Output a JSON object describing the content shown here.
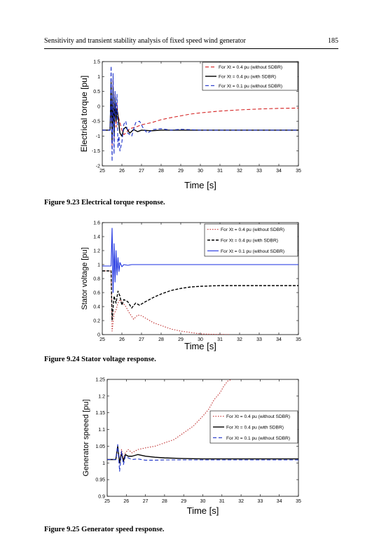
{
  "header": {
    "title": "Sensitivity and transient stability analysis of fixed speed wind generator",
    "page_number": "185"
  },
  "figures": [
    {
      "caption": "Figure 9.23  Electrical torque response."
    },
    {
      "caption": "Figure 9.24  Stator voltage response."
    },
    {
      "caption": "Figure 9.25  Generator speed response."
    }
  ],
  "chart_data": [
    {
      "type": "line",
      "xlabel": "Time [s]",
      "ylabel": "Electrical torque [pu]",
      "xlim": [
        25,
        35
      ],
      "ylim": [
        -2,
        1.5
      ],
      "xticks": [
        "25",
        "26",
        "27",
        "28",
        "29",
        "30",
        "31",
        "32",
        "33",
        "34",
        "35"
      ],
      "yticks": [
        "-2",
        "-1.5",
        "-1",
        "-0.5",
        "0",
        "0.5",
        "1",
        "1.5"
      ],
      "legend_position": "top-right",
      "series": [
        {
          "name": "For Xt = 0.4 pu (without SDBR)",
          "color": "#d42020",
          "dash": "5,3",
          "x": [
            25,
            25.4,
            25.45,
            25.5,
            25.55,
            25.6,
            25.65,
            25.7,
            25.75,
            25.8,
            25.9,
            26.0,
            26.1,
            26.2,
            26.4,
            26.7,
            27,
            27.5,
            28,
            28.5,
            29,
            29.5,
            30,
            31,
            32,
            33,
            34,
            35
          ],
          "y": [
            -0.8,
            -0.8,
            0.6,
            -1.4,
            0.9,
            -1.1,
            0.4,
            -0.7,
            0.1,
            -0.3,
            -0.55,
            -0.8,
            -0.95,
            -0.9,
            -0.75,
            -0.7,
            -0.62,
            -0.55,
            -0.45,
            -0.38,
            -0.32,
            -0.26,
            -0.22,
            -0.16,
            -0.12,
            -0.09,
            -0.07,
            -0.06
          ]
        },
        {
          "name": "For Xt = 0.4 pu (with SDBR)",
          "color": "#000000",
          "dash": "",
          "x": [
            25,
            25.4,
            25.45,
            25.5,
            25.55,
            25.6,
            25.65,
            25.7,
            25.75,
            25.8,
            25.9,
            26.0,
            26.1,
            26.2,
            26.4,
            26.6,
            26.8,
            27.0,
            27.5,
            28,
            29,
            30,
            31,
            32,
            33,
            34,
            35
          ],
          "y": [
            -0.8,
            -0.8,
            0.8,
            -1.2,
            0.6,
            -1.0,
            0.3,
            -0.5,
            -0.1,
            -0.3,
            -0.9,
            -1.0,
            -0.75,
            -0.7,
            -0.9,
            -0.78,
            -0.85,
            -0.8,
            -0.82,
            -0.8,
            -0.8,
            -0.8,
            -0.8,
            -0.8,
            -0.8,
            -0.8,
            -0.8
          ]
        },
        {
          "name": "For Xt = 0.1 pu (without SDBR)",
          "color": "#1a2fc8",
          "dash": "5,3",
          "x": [
            25,
            25.4,
            25.45,
            25.5,
            25.55,
            25.6,
            25.65,
            25.7,
            25.75,
            25.8,
            25.85,
            25.9,
            26.0,
            26.1,
            26.2,
            26.3,
            26.5,
            26.7,
            26.9,
            27.1,
            27.3,
            27.6,
            28,
            28.5,
            29,
            30,
            31,
            32,
            33,
            34,
            35
          ],
          "y": [
            -0.8,
            -0.8,
            1.35,
            -1.85,
            1.1,
            -1.6,
            0.5,
            -0.3,
            0.4,
            -1.4,
            -1.0,
            -1.5,
            -1.2,
            -0.6,
            -0.5,
            -0.9,
            -1.0,
            -0.55,
            -0.5,
            -0.75,
            -0.9,
            -0.78,
            -0.75,
            -0.8,
            -0.77,
            -0.8,
            -0.8,
            -0.8,
            -0.8,
            -0.8,
            -0.8
          ]
        }
      ]
    },
    {
      "type": "line",
      "xlabel": "Time [s]",
      "ylabel": "Stator voltage [pu]",
      "xlim": [
        25,
        35
      ],
      "ylim": [
        0,
        1.6
      ],
      "xticks": [
        "25",
        "26",
        "27",
        "28",
        "29",
        "30",
        "31",
        "32",
        "33",
        "34",
        "35"
      ],
      "yticks": [
        "0",
        "0.2",
        "0.4",
        "0.6",
        "0.8",
        "1",
        "1.2",
        "1.4",
        "1.6"
      ],
      "legend_position": "top-right",
      "series": [
        {
          "name": "For Xt = 0.4 pu (without SDBR)",
          "color": "#c03030",
          "dash": "1.5,2",
          "x": [
            25,
            25.45,
            25.5,
            25.6,
            25.7,
            25.8,
            25.9,
            26.0,
            26.2,
            26.4,
            26.6,
            26.8,
            27.0,
            27.3,
            27.6,
            28,
            28.5,
            29,
            29.5,
            30,
            30.5,
            31.5
          ],
          "y": [
            0.91,
            0.91,
            0.05,
            0.3,
            0.35,
            0.45,
            0.5,
            0.47,
            0.4,
            0.3,
            0.22,
            0.28,
            0.27,
            0.22,
            0.17,
            0.13,
            0.08,
            0.05,
            0.03,
            0.01,
            0.005,
            0.0
          ]
        },
        {
          "name": "For Xt = 0.4 pu (with SDBR)",
          "color": "#000000",
          "dash": "4,2",
          "x": [
            25,
            25.45,
            25.5,
            25.6,
            25.7,
            25.8,
            25.9,
            26.0,
            26.1,
            26.3,
            26.5,
            26.7,
            26.9,
            27.2,
            27.6,
            28,
            28.5,
            29,
            29.5,
            30,
            31,
            32,
            33,
            34,
            35
          ],
          "y": [
            0.91,
            0.91,
            0.2,
            0.55,
            0.45,
            0.62,
            0.55,
            0.42,
            0.5,
            0.47,
            0.38,
            0.45,
            0.42,
            0.47,
            0.53,
            0.58,
            0.63,
            0.66,
            0.68,
            0.69,
            0.7,
            0.7,
            0.7,
            0.7,
            0.7
          ]
        },
        {
          "name": "For Xt = 0.1 pu (without SDBR)",
          "color": "#1a2fe0",
          "dash": "",
          "x": [
            25,
            25.45,
            25.5,
            25.55,
            25.6,
            25.65,
            25.7,
            25.75,
            25.8,
            25.85,
            25.9,
            26.0,
            26.1,
            26.3,
            26.5,
            27,
            28,
            30,
            35
          ],
          "y": [
            0.98,
            0.98,
            1.52,
            0.6,
            1.3,
            0.75,
            1.2,
            0.85,
            1.1,
            0.9,
            1.03,
            0.97,
            1.0,
            0.99,
            1.0,
            1.0,
            1.0,
            1.0,
            1.0
          ]
        }
      ]
    },
    {
      "type": "line",
      "xlabel": "Time [s]",
      "ylabel": "Generator speeed [pu]",
      "xlim": [
        25,
        35
      ],
      "ylim": [
        0.9,
        1.25
      ],
      "xticks": [
        "25",
        "26",
        "27",
        "28",
        "29",
        "30",
        "31",
        "32",
        "33",
        "34",
        "35"
      ],
      "yticks": [
        "0.9",
        "0.95",
        "1",
        "1.05",
        "1.1",
        "1.15",
        "1.2",
        "1.25"
      ],
      "legend_position": "right",
      "series": [
        {
          "name": "For Xt = 0.4 pu (without SDBR)",
          "color": "#c03030",
          "dash": "1.5,2",
          "x": [
            25,
            25.45,
            25.55,
            25.65,
            25.75,
            25.85,
            25.95,
            26.1,
            26.3,
            26.6,
            27,
            27.5,
            28,
            28.5,
            29,
            29.5,
            30,
            30.3,
            30.6,
            30.9,
            31.1,
            31.3,
            31.5
          ],
          "y": [
            1.01,
            1.01,
            1.05,
            1.0,
            1.04,
            1.01,
            1.03,
            1.04,
            1.03,
            1.04,
            1.045,
            1.05,
            1.06,
            1.07,
            1.09,
            1.11,
            1.14,
            1.16,
            1.19,
            1.21,
            1.23,
            1.245,
            1.25
          ]
        },
        {
          "name": "For Xt = 0.4 pu (with SDBR)",
          "color": "#000000",
          "dash": "",
          "x": [
            25,
            25.45,
            25.55,
            25.65,
            25.75,
            25.85,
            25.95,
            26.1,
            26.3,
            26.6,
            27,
            27.5,
            28,
            29,
            30,
            31,
            33,
            35
          ],
          "y": [
            1.01,
            1.01,
            1.05,
            1.0,
            1.03,
            1.005,
            1.025,
            1.02,
            1.02,
            1.025,
            1.02,
            1.017,
            1.015,
            1.013,
            1.012,
            1.012,
            1.012,
            1.012
          ]
        },
        {
          "name": "For Xt = 0.1 pu (without SDBR)",
          "color": "#1a2fc8",
          "dash": "5,3",
          "x": [
            25,
            25.45,
            25.55,
            25.65,
            25.75,
            25.85,
            25.95,
            26.1,
            26.3,
            26.6,
            27,
            27.5,
            28,
            29,
            30,
            31,
            33,
            35
          ],
          "y": [
            1.01,
            1.01,
            1.055,
            0.975,
            1.035,
            0.995,
            1.02,
            1.015,
            1.01,
            1.012,
            1.008,
            1.008,
            1.009,
            1.009,
            1.009,
            1.009,
            1.009,
            1.009
          ]
        }
      ]
    }
  ]
}
